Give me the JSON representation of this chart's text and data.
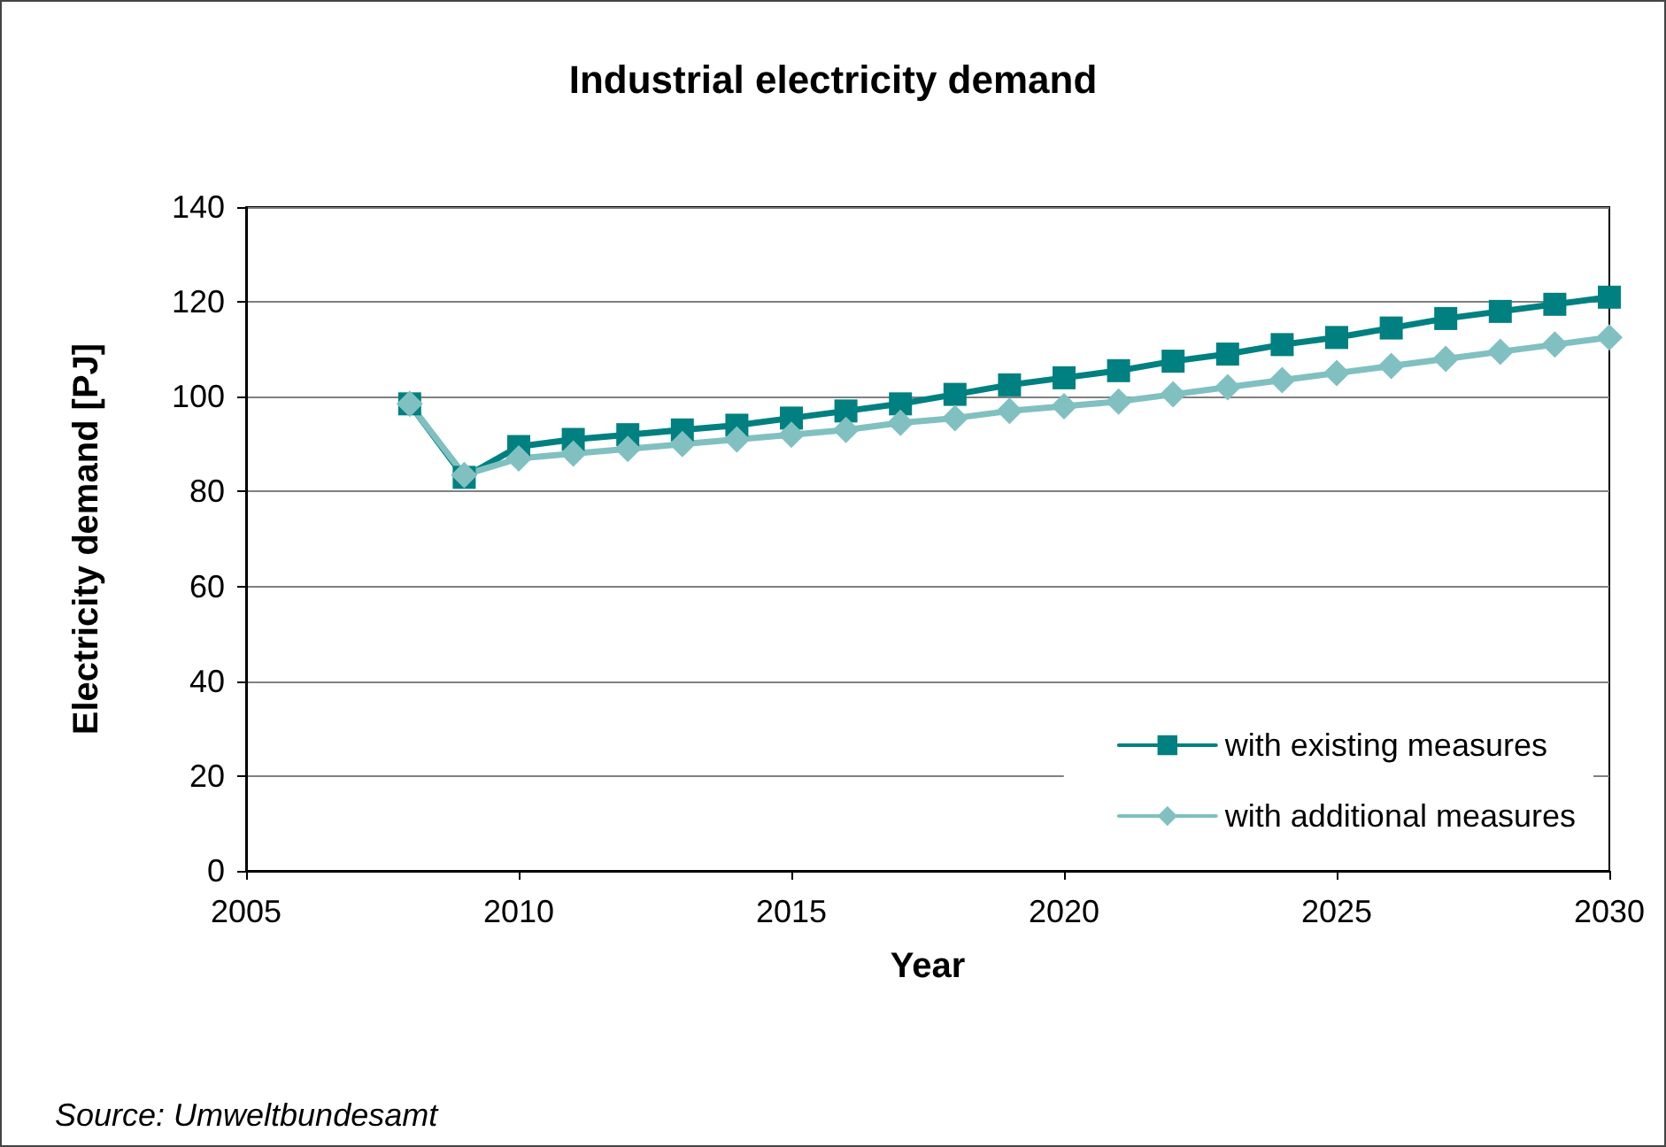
{
  "chart_data": {
    "type": "line",
    "title": "Industrial electricity demand",
    "xlabel": "Year",
    "ylabel": "Electricity demand [PJ]",
    "x": [
      2008,
      2009,
      2010,
      2011,
      2012,
      2013,
      2014,
      2015,
      2016,
      2017,
      2018,
      2019,
      2020,
      2021,
      2022,
      2023,
      2024,
      2025,
      2026,
      2027,
      2028,
      2029,
      2030
    ],
    "series": [
      {
        "name": "with existing measures",
        "color": "#008080",
        "marker": "square",
        "values": [
          98.5,
          83,
          89.5,
          91,
          92,
          93,
          94,
          95.5,
          97,
          98.5,
          100.5,
          102.5,
          104,
          105.5,
          107.5,
          109,
          111,
          112.5,
          114.5,
          116.5,
          118,
          119.5,
          121
        ]
      },
      {
        "name": "with additional measures",
        "color": "#80c0c0",
        "marker": "diamond",
        "values": [
          98.5,
          83.5,
          87,
          88,
          89,
          90,
          91,
          92,
          93,
          94.5,
          95.5,
          97,
          98,
          99,
          100.5,
          102,
          103.5,
          105,
          106.5,
          108,
          109.5,
          111,
          112.5
        ]
      }
    ],
    "xlim": [
      2005,
      2030
    ],
    "xticks": [
      2005,
      2010,
      2015,
      2020,
      2025,
      2030
    ],
    "ylim": [
      0,
      140
    ],
    "yticks": [
      0,
      20,
      40,
      60,
      80,
      100,
      120,
      140
    ],
    "grid": "y",
    "legend": "bottom right",
    "line_style": "solid",
    "annotations": [
      "Source: Umweltbundesamt"
    ]
  }
}
